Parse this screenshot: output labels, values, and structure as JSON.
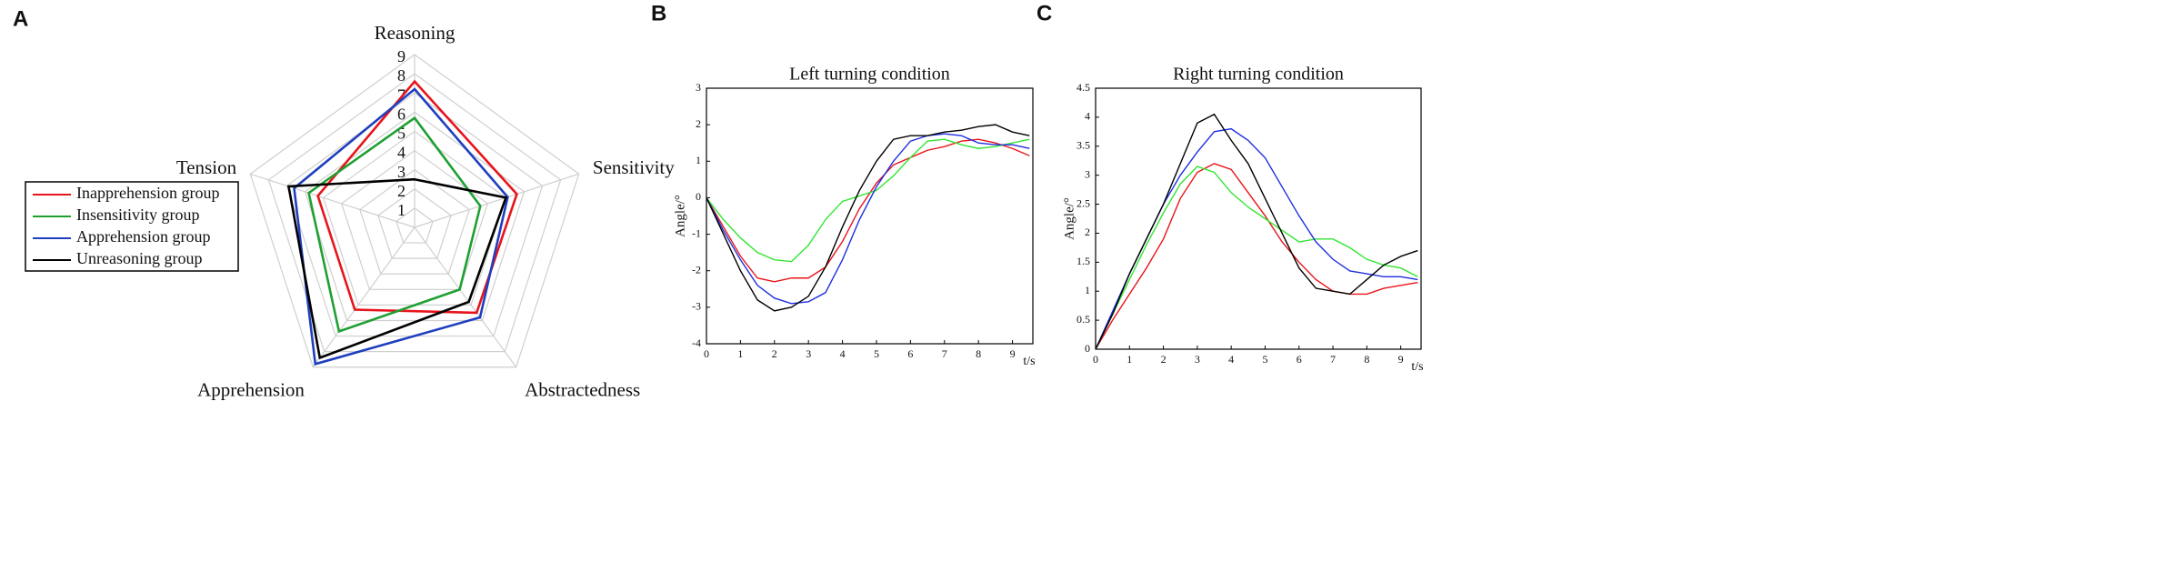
{
  "chart_data": [
    {
      "type": "radar",
      "panel": "A",
      "axes": [
        "Reasoning",
        "Sensitivity",
        "Abstractedness",
        "Apprehension",
        "Tension"
      ],
      "rlim": [
        0,
        9
      ],
      "rticks": [
        1,
        2,
        3,
        4,
        5,
        6,
        7,
        8,
        9
      ],
      "grid": true,
      "legend": "left",
      "series": [
        {
          "name": "Inapprehension group",
          "color": "#e8141b",
          "values": [
            7.6,
            5.6,
            5.5,
            5.3,
            5.3
          ]
        },
        {
          "name": "Insensitivity group",
          "color": "#1fa032",
          "values": [
            5.7,
            3.6,
            4.0,
            6.7,
            5.8
          ]
        },
        {
          "name": "Apprehension group",
          "color": "#1f3fbf",
          "values": [
            7.2,
            5.1,
            5.8,
            8.8,
            6.6
          ]
        },
        {
          "name": "Unreasoning group",
          "color": "#000000",
          "values": [
            2.5,
            5.0,
            4.8,
            8.4,
            6.9
          ]
        }
      ]
    },
    {
      "type": "line",
      "panel": "B",
      "title": "Left turning condition",
      "xlabel": "t/s",
      "ylabel": "Angle/°",
      "x": [
        0,
        0.5,
        1,
        1.5,
        2,
        2.5,
        3,
        3.5,
        4,
        4.5,
        5,
        5.5,
        6,
        6.5,
        7,
        7.5,
        8,
        8.5,
        9,
        9.5
      ],
      "xlim": [
        0,
        9.6
      ],
      "xticks": [
        0,
        1,
        2,
        3,
        4,
        5,
        6,
        7,
        8,
        9
      ],
      "ylim": [
        -4,
        3
      ],
      "yticks": [
        -4,
        -3,
        -2,
        -1,
        0,
        1,
        2,
        3
      ],
      "grid": false,
      "series": [
        {
          "color": "#e8141b",
          "values": [
            0,
            -0.8,
            -1.6,
            -2.2,
            -2.3,
            -2.2,
            -2.2,
            -1.9,
            -1.2,
            -0.3,
            0.4,
            0.9,
            1.1,
            1.3,
            1.4,
            1.55,
            1.6,
            1.5,
            1.35,
            1.15
          ]
        },
        {
          "color": "#33e633",
          "values": [
            0,
            -0.6,
            -1.1,
            -1.5,
            -1.7,
            -1.75,
            -1.3,
            -0.6,
            -0.1,
            0.05,
            0.2,
            0.6,
            1.1,
            1.55,
            1.6,
            1.45,
            1.35,
            1.4,
            1.5,
            1.6
          ]
        },
        {
          "color": "#1f2fe0",
          "values": [
            0,
            -0.9,
            -1.7,
            -2.4,
            -2.75,
            -2.9,
            -2.85,
            -2.6,
            -1.7,
            -0.6,
            0.3,
            1.0,
            1.55,
            1.7,
            1.75,
            1.7,
            1.5,
            1.45,
            1.45,
            1.35
          ]
        },
        {
          "color": "#000000",
          "values": [
            0,
            -1.0,
            -2.0,
            -2.8,
            -3.1,
            -3.0,
            -2.7,
            -1.9,
            -0.8,
            0.2,
            1.0,
            1.6,
            1.7,
            1.7,
            1.8,
            1.85,
            1.95,
            2.0,
            1.8,
            1.7
          ]
        }
      ]
    },
    {
      "type": "line",
      "panel": "C",
      "title": "Right turning condition",
      "xlabel": "t/s",
      "ylabel": "Angle/°",
      "x": [
        0,
        0.5,
        1,
        1.5,
        2,
        2.5,
        3,
        3.5,
        4,
        4.5,
        5,
        5.5,
        6,
        6.5,
        7,
        7.5,
        8,
        8.5,
        9,
        9.5
      ],
      "xlim": [
        0,
        9.6
      ],
      "xticks": [
        0,
        1,
        2,
        3,
        4,
        5,
        6,
        7,
        8,
        9
      ],
      "ylim": [
        0,
        4.5
      ],
      "yticks": [
        0,
        0.5,
        1,
        1.5,
        2,
        2.5,
        3,
        3.5,
        4,
        4.5
      ],
      "grid": false,
      "series": [
        {
          "color": "#e8141b",
          "values": [
            0,
            0.5,
            0.95,
            1.4,
            1.9,
            2.6,
            3.05,
            3.2,
            3.1,
            2.7,
            2.3,
            1.85,
            1.5,
            1.2,
            1.0,
            0.95,
            0.95,
            1.05,
            1.1,
            1.15
          ]
        },
        {
          "color": "#33e633",
          "values": [
            0,
            0.6,
            1.2,
            1.8,
            2.35,
            2.85,
            3.15,
            3.05,
            2.7,
            2.45,
            2.25,
            2.05,
            1.85,
            1.9,
            1.9,
            1.75,
            1.55,
            1.45,
            1.4,
            1.25
          ]
        },
        {
          "color": "#1f2fe0",
          "values": [
            0,
            0.65,
            1.3,
            1.9,
            2.5,
            3.0,
            3.4,
            3.75,
            3.8,
            3.6,
            3.3,
            2.8,
            2.3,
            1.85,
            1.55,
            1.35,
            1.3,
            1.25,
            1.25,
            1.2
          ]
        },
        {
          "color": "#000000",
          "values": [
            0,
            0.6,
            1.3,
            1.9,
            2.5,
            3.2,
            3.9,
            4.05,
            3.6,
            3.2,
            2.6,
            2.0,
            1.4,
            1.05,
            1.0,
            0.95,
            1.2,
            1.45,
            1.6,
            1.7
          ]
        }
      ]
    }
  ]
}
